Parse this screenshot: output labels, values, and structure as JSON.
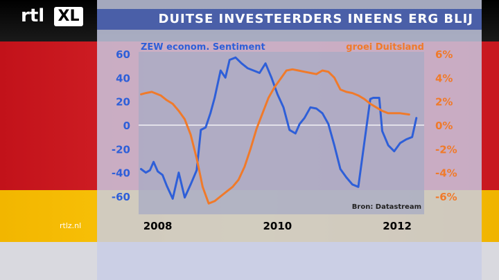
{
  "logo": {
    "rtl": "rtl",
    "xl": "XL"
  },
  "title": "DUITSE INVESTEERDERS INEENS ERG BLIJ",
  "watermark": "rtlz.nl",
  "colors": {
    "zew": "#2e5fd8",
    "growth": "#f07a2a",
    "plot_bg": "#a7abc4"
  },
  "chart_data": {
    "type": "line",
    "source": "Bron: Datastream",
    "x_ticks": [
      2008,
      2010,
      2012
    ],
    "xlim": [
      2007.68,
      2012.45
    ],
    "y_left": {
      "ticks": [
        60,
        40,
        20,
        0,
        -20,
        -40,
        -60
      ],
      "ylim": [
        -70,
        70
      ]
    },
    "y_right": {
      "ticks": [
        "6%",
        "4%",
        "2%",
        "0%",
        "-2%",
        "-4%",
        "-6%"
      ],
      "ylim": [
        -7,
        7
      ]
    },
    "series": [
      {
        "name": "ZEW econom. Sentiment",
        "axis": "left",
        "color": "#2e5fd8",
        "x": [
          2007.72,
          2007.8,
          2007.87,
          2007.93,
          2008.0,
          2008.08,
          2008.15,
          2008.25,
          2008.35,
          2008.45,
          2008.55,
          2008.65,
          2008.72,
          2008.8,
          2008.88,
          2008.95,
          2009.05,
          2009.13,
          2009.2,
          2009.3,
          2009.4,
          2009.5,
          2009.6,
          2009.7,
          2009.8,
          2009.9,
          2010.0,
          2010.1,
          2010.2,
          2010.3,
          2010.37,
          2010.45,
          2010.55,
          2010.65,
          2010.75,
          2010.85,
          2010.95,
          2011.05,
          2011.15,
          2011.25,
          2011.35,
          2011.45,
          2011.55,
          2011.6,
          2011.7,
          2011.75,
          2011.85,
          2011.95,
          2012.05,
          2012.15,
          2012.25,
          2012.32
        ],
        "y": [
          -37,
          -40,
          -38,
          -31,
          -39,
          -42,
          -51,
          -62,
          -40,
          -61,
          -50,
          -38,
          -4,
          -2,
          10,
          23,
          46,
          40,
          55,
          57,
          52,
          48,
          46,
          44,
          52,
          40,
          26,
          15,
          -4,
          -7,
          1,
          6,
          15,
          14,
          10,
          1,
          -17,
          -37,
          -44,
          -50,
          -52,
          -15,
          22,
          23,
          23,
          -5,
          -17,
          -22,
          -15,
          -12,
          -10,
          6
        ]
      },
      {
        "name": "groei Duitsland",
        "axis": "right",
        "color": "#f07a2a",
        "x": [
          2007.72,
          2007.8,
          2007.9,
          2008.05,
          2008.15,
          2008.25,
          2008.35,
          2008.45,
          2008.55,
          2008.65,
          2008.75,
          2008.85,
          2008.95,
          2009.05,
          2009.15,
          2009.25,
          2009.35,
          2009.45,
          2009.55,
          2009.65,
          2009.75,
          2009.85,
          2009.95,
          2010.05,
          2010.15,
          2010.25,
          2010.35,
          2010.45,
          2010.55,
          2010.65,
          2010.75,
          2010.85,
          2010.95,
          2011.05,
          2011.15,
          2011.25,
          2011.35,
          2011.45,
          2011.55,
          2011.65,
          2011.75,
          2011.85,
          2011.95,
          2012.05,
          2012.2
        ],
        "y": [
          2.6,
          2.7,
          2.8,
          2.5,
          2.1,
          1.8,
          1.2,
          0.5,
          -0.8,
          -2.8,
          -5.2,
          -6.6,
          -6.4,
          -6.0,
          -5.6,
          -5.2,
          -4.6,
          -3.5,
          -2.0,
          -0.3,
          1.0,
          2.3,
          3.2,
          3.9,
          4.6,
          4.7,
          4.6,
          4.5,
          4.4,
          4.3,
          4.6,
          4.5,
          4.0,
          3.0,
          2.8,
          2.7,
          2.5,
          2.2,
          1.8,
          1.5,
          1.2,
          1.0,
          1.0,
          1.0,
          0.9
        ]
      }
    ]
  }
}
